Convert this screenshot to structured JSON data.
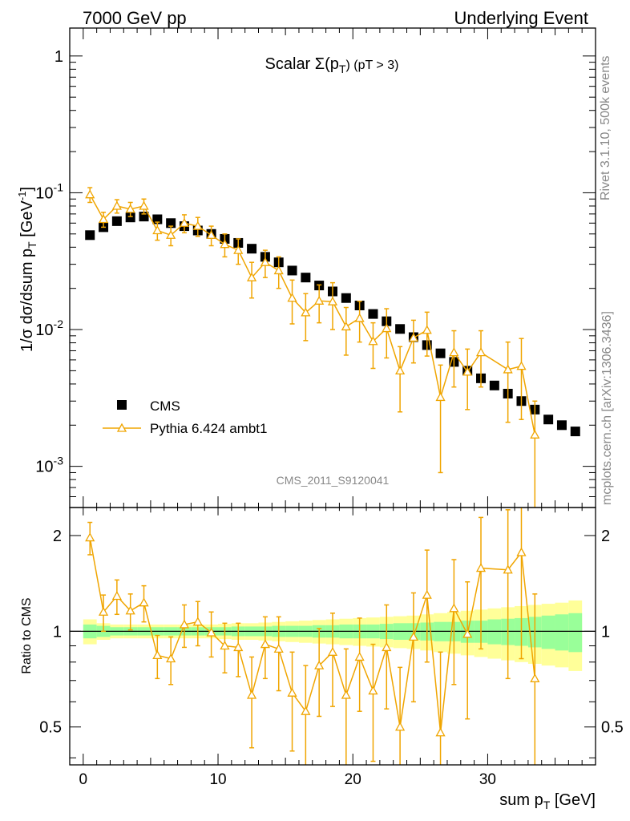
{
  "header": {
    "left": "7000 GeV pp",
    "right": "Underlying Event"
  },
  "side_labels": {
    "top": "Rivet 3.1.10,  500k events",
    "bottom": "mcplots.cern.ch [arXiv:1306.3436]"
  },
  "colors": {
    "mc": "#f0a500",
    "band_inner": "#99ff99",
    "band_outer": "#ffff99",
    "data": "#000000"
  },
  "chart_data": [
    {
      "type": "scatter",
      "panel": "main",
      "title_main": "Scalar Σ(p",
      "title_sub": "T",
      "title_tail": ") (pT >  3)",
      "analysis_label": "CMS_2011_S9120041",
      "ylabel": "1/σ dσ/dsum p",
      "ylabel_sub": "T",
      "ylabel_unit": "[GeV",
      "ylabel_sup": "-1",
      "ylabel_end": "]",
      "yscale": "log",
      "ylim": [
        0.0005,
        1.6
      ],
      "xlim": [
        -1,
        38
      ],
      "ytick_labels": [
        {
          "v": 1,
          "base": "1",
          "exp": ""
        },
        {
          "v": 0.1,
          "base": "10",
          "exp": "-1"
        },
        {
          "v": 0.01,
          "base": "10",
          "exp": "-2"
        },
        {
          "v": 0.001,
          "base": "10",
          "exp": "-3"
        }
      ],
      "legend": {
        "position": "bottom-left",
        "entries": [
          "CMS",
          "Pythia 6.424 ambt1"
        ]
      },
      "series": [
        {
          "name": "CMS",
          "marker": "square",
          "x": [
            0.5,
            1.5,
            2.5,
            3.5,
            4.5,
            5.5,
            6.5,
            7.5,
            8.5,
            9.5,
            10.5,
            11.5,
            12.5,
            13.5,
            14.5,
            15.5,
            16.5,
            17.5,
            18.5,
            19.5,
            20.5,
            21.5,
            22.5,
            23.5,
            24.5,
            25.5,
            26.5,
            27.5,
            28.5,
            29.5,
            30.5,
            31.5,
            32.5,
            33.5,
            34.5,
            35.5,
            36.5
          ],
          "y": [
            0.049,
            0.056,
            0.062,
            0.066,
            0.067,
            0.064,
            0.06,
            0.057,
            0.053,
            0.05,
            0.046,
            0.043,
            0.039,
            0.034,
            0.031,
            0.027,
            0.024,
            0.021,
            0.019,
            0.017,
            0.015,
            0.013,
            0.0115,
            0.0101,
            0.0088,
            0.0077,
            0.0067,
            0.0058,
            0.005,
            0.0044,
            0.0039,
            0.0034,
            0.003,
            0.0026,
            0.0022,
            0.002,
            0.0018
          ]
        },
        {
          "name": "Pythia 6.424 ambt1",
          "marker": "triangle-open",
          "x": [
            0.5,
            1.5,
            2.5,
            3.5,
            4.5,
            5.5,
            6.5,
            7.5,
            8.5,
            9.5,
            10.5,
            11.5,
            12.5,
            13.5,
            14.5,
            15.5,
            16.5,
            17.5,
            18.5,
            19.5,
            20.5,
            21.5,
            22.5,
            23.5,
            24.5,
            25.5,
            26.5,
            27.5,
            28.5,
            29.5,
            31.5,
            32.5,
            33.5
          ],
          "y": [
            0.097,
            0.064,
            0.08,
            0.076,
            0.08,
            0.053,
            0.049,
            0.06,
            0.057,
            0.049,
            0.042,
            0.038,
            0.024,
            0.031,
            0.027,
            0.017,
            0.0133,
            0.0162,
            0.016,
            0.0105,
            0.0121,
            0.0082,
            0.0102,
            0.005,
            0.0087,
            0.0099,
            0.0032,
            0.0068,
            0.0049,
            0.0068,
            0.0051,
            0.0054,
            0.0017
          ],
          "y_err": [
            0.012,
            0.008,
            0.009,
            0.009,
            0.01,
            0.008,
            0.008,
            0.009,
            0.009,
            0.008,
            0.008,
            0.008,
            0.007,
            0.007,
            0.007,
            0.006,
            0.005,
            0.005,
            0.006,
            0.004,
            0.004,
            0.003,
            0.004,
            0.0025,
            0.003,
            0.0035,
            0.0023,
            0.003,
            0.0023,
            0.003,
            0.003,
            0.0032,
            0.0013
          ]
        }
      ]
    },
    {
      "type": "scatter",
      "panel": "ratio",
      "ylabel": "Ratio to CMS",
      "xlabel_main": "sum p",
      "xlabel_sub": "T",
      "xlabel_tail": " [GeV]",
      "yscale": "log",
      "ylim": [
        0.38,
        2.45
      ],
      "xlim": [
        -1,
        38
      ],
      "ytick_labels": [
        {
          "v": 2,
          "label": "2"
        },
        {
          "v": 1,
          "label": "1"
        },
        {
          "v": 0.5,
          "label": "0.5"
        }
      ],
      "xtick_labels": [
        {
          "v": 0,
          "label": "0"
        },
        {
          "v": 10,
          "label": "10"
        },
        {
          "v": 20,
          "label": "20"
        },
        {
          "v": 30,
          "label": "30"
        }
      ],
      "bands": {
        "x_edges": [
          0,
          1,
          2,
          3,
          4,
          5,
          6,
          7,
          8,
          9,
          10,
          11,
          12,
          13,
          14,
          15,
          16,
          17,
          18,
          19,
          20,
          21,
          22,
          23,
          24,
          25,
          26,
          27,
          28,
          29,
          30,
          31,
          32,
          33,
          34,
          35,
          36,
          37
        ],
        "inner_half": [
          0.05,
          0.04,
          0.03,
          0.03,
          0.03,
          0.03,
          0.03,
          0.03,
          0.03,
          0.03,
          0.03,
          0.035,
          0.035,
          0.035,
          0.04,
          0.04,
          0.04,
          0.045,
          0.045,
          0.05,
          0.05,
          0.05,
          0.055,
          0.06,
          0.06,
          0.065,
          0.07,
          0.07,
          0.08,
          0.08,
          0.09,
          0.095,
          0.1,
          0.11,
          0.12,
          0.13,
          0.14
        ],
        "outer_half": [
          0.09,
          0.06,
          0.05,
          0.05,
          0.05,
          0.05,
          0.05,
          0.05,
          0.05,
          0.05,
          0.055,
          0.06,
          0.06,
          0.065,
          0.07,
          0.075,
          0.08,
          0.085,
          0.09,
          0.095,
          0.1,
          0.105,
          0.11,
          0.115,
          0.12,
          0.13,
          0.14,
          0.15,
          0.16,
          0.17,
          0.18,
          0.19,
          0.2,
          0.21,
          0.22,
          0.23,
          0.25
        ]
      },
      "series": [
        {
          "name": "Pythia 6.424 ambt1",
          "x": [
            0.5,
            1.5,
            2.5,
            3.5,
            4.5,
            5.5,
            6.5,
            7.5,
            8.5,
            9.5,
            10.5,
            11.5,
            12.5,
            13.5,
            14.5,
            15.5,
            16.5,
            17.5,
            18.5,
            19.5,
            20.5,
            21.5,
            22.5,
            23.5,
            24.5,
            25.5,
            26.5,
            27.5,
            28.5,
            29.5,
            31.5,
            32.5,
            33.5
          ],
          "y": [
            1.97,
            1.15,
            1.29,
            1.16,
            1.23,
            0.84,
            0.82,
            1.05,
            1.07,
            0.99,
            0.9,
            0.89,
            0.63,
            0.91,
            0.88,
            0.64,
            0.56,
            0.78,
            0.86,
            0.63,
            0.83,
            0.65,
            0.89,
            0.5,
            0.96,
            1.3,
            0.48,
            1.18,
            0.98,
            1.58,
            1.56,
            1.77,
            0.71
          ],
          "y_err": [
            0.23,
            0.15,
            0.16,
            0.15,
            0.16,
            0.13,
            0.14,
            0.16,
            0.17,
            0.16,
            0.16,
            0.17,
            0.2,
            0.2,
            0.23,
            0.22,
            0.22,
            0.24,
            0.28,
            0.25,
            0.27,
            0.26,
            0.32,
            0.27,
            0.36,
            0.5,
            0.38,
            0.5,
            0.45,
            0.7,
            0.85,
            0.95,
            0.6
          ]
        }
      ]
    }
  ]
}
